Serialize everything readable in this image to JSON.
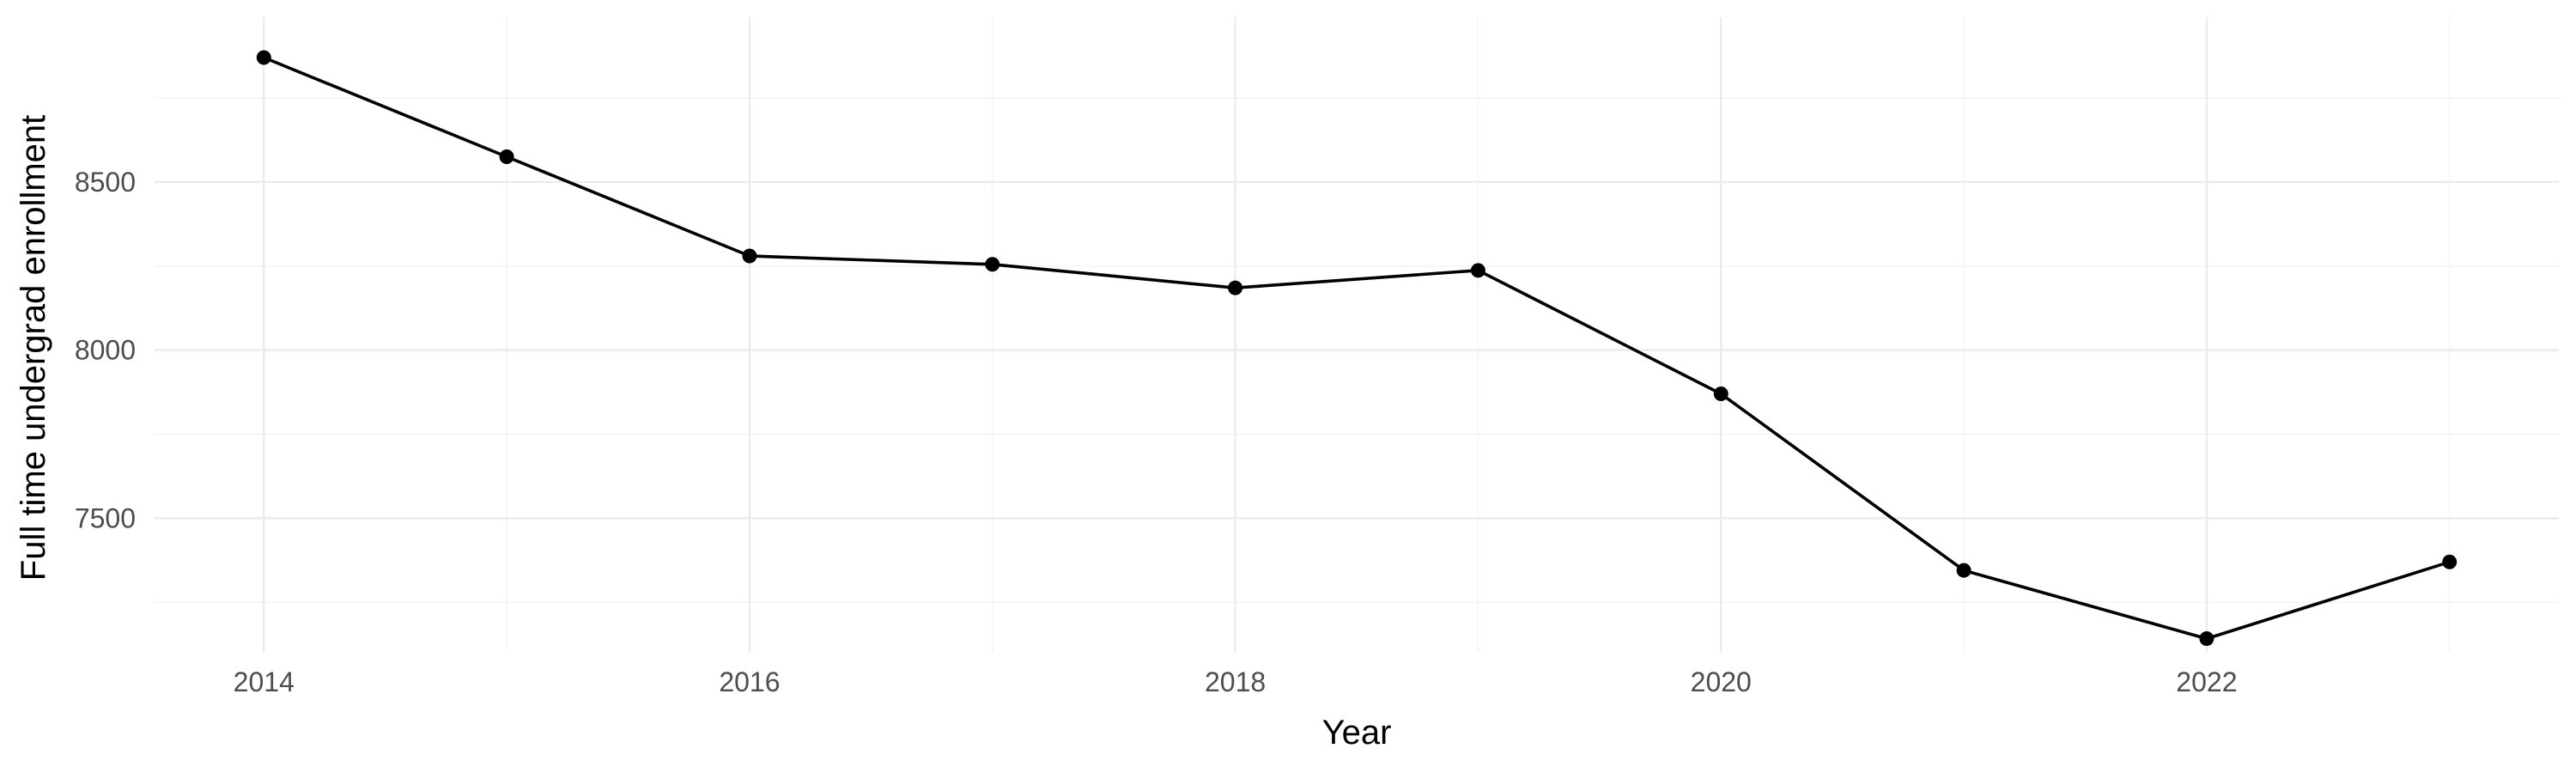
{
  "chart_data": {
    "type": "line",
    "title": "",
    "xlabel": "Year",
    "ylabel": "Full time undergrad enrollment",
    "x": [
      2014,
      2015,
      2016,
      2017,
      2018,
      2019,
      2020,
      2021,
      2022,
      2023
    ],
    "series": [
      {
        "values": [
          8870,
          8575,
          8280,
          8255,
          8185,
          8237,
          7870,
          7345,
          7142,
          7370
        ]
      }
    ],
    "xlim": [
      2013.55,
      2023.45
    ],
    "ylim": [
      7100,
      8990
    ],
    "x_ticks": [
      2014,
      2016,
      2018,
      2020,
      2022
    ],
    "x_tick_labels": [
      "2014",
      "2016",
      "2018",
      "2020",
      "2022"
    ],
    "x_minor_ticks": [
      2015,
      2017,
      2019,
      2021,
      2023
    ],
    "y_ticks": [
      7500,
      8000,
      8500
    ],
    "y_tick_labels": [
      "7500",
      "8000",
      "8500"
    ],
    "y_minor_ticks": [
      7250,
      7750,
      8250,
      8750
    ],
    "grid": true,
    "legend": "none",
    "line_color": "#000000",
    "grid_color": "#ebebeb"
  }
}
